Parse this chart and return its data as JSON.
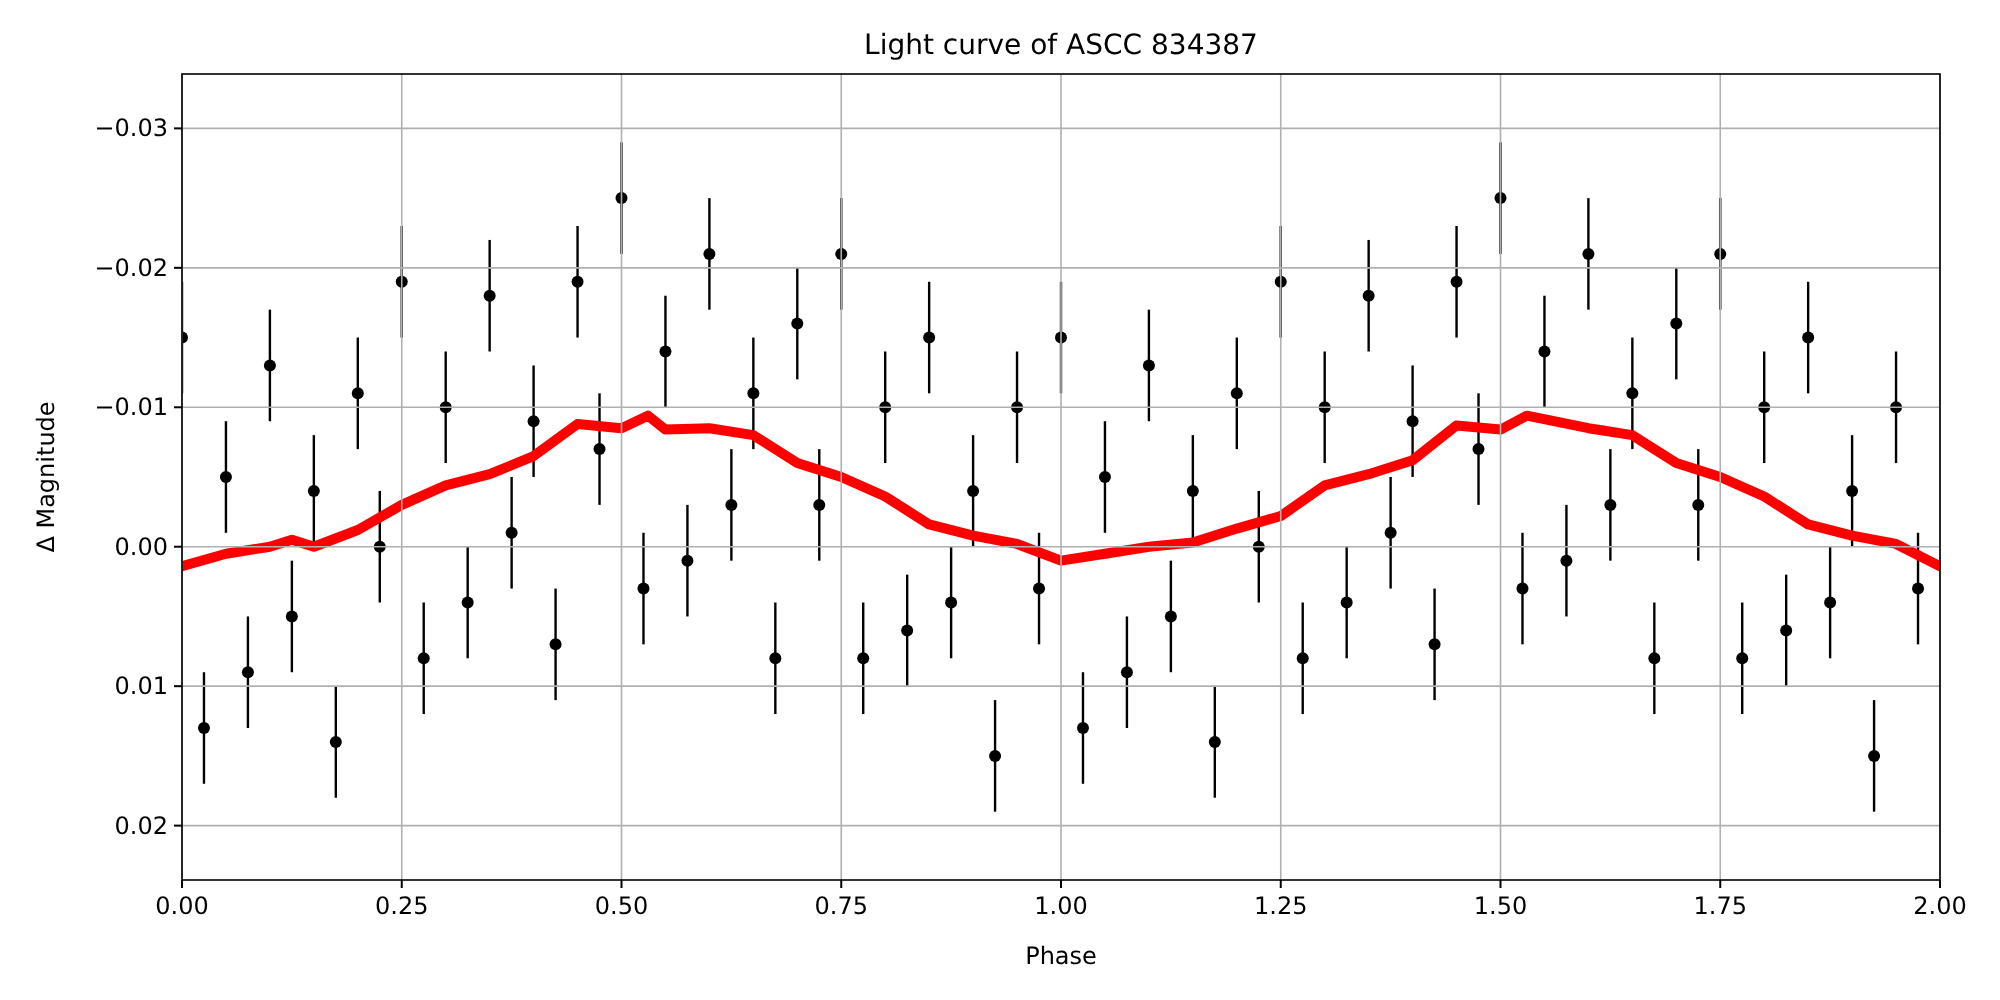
{
  "chart_data": {
    "type": "scatter",
    "title": "Light curve of ASCC 834387",
    "xlabel": "Phase",
    "ylabel": "Δ Magnitude",
    "xlim": [
      0,
      2
    ],
    "xticks": [
      {
        "value": 0,
        "label": "0.00"
      },
      {
        "value": 0.25,
        "label": "0.25"
      },
      {
        "value": 0.5,
        "label": "0.50"
      },
      {
        "value": 0.75,
        "label": "0.75"
      },
      {
        "value": 1,
        "label": "1.00"
      },
      {
        "value": 1.25,
        "label": "1.25"
      },
      {
        "value": 1.5,
        "label": "1.50"
      },
      {
        "value": 1.75,
        "label": "1.75"
      },
      {
        "value": 2,
        "label": "2.00"
      }
    ],
    "ylim": [
      0.0239,
      -0.0339
    ],
    "yticks": [
      {
        "value": -0.03,
        "label": "−0.03"
      },
      {
        "value": -0.02,
        "label": "−0.02"
      },
      {
        "value": -0.01,
        "label": "−0.01"
      },
      {
        "value": 0,
        "label": "0.00"
      },
      {
        "value": 0.01,
        "label": "0.01"
      },
      {
        "value": 0.02,
        "label": "0.02"
      }
    ],
    "grid": true,
    "series": [
      {
        "marker": "circle",
        "color": "#000000",
        "x": [
          0,
          0.025,
          0.05,
          0.075,
          0.1,
          0.125,
          0.15,
          0.175,
          0.2,
          0.225,
          0.25,
          0.275,
          0.3,
          0.325,
          0.35,
          0.375,
          0.4,
          0.425,
          0.45,
          0.475,
          0.5,
          0.525,
          0.55,
          0.575,
          0.6,
          0.625,
          0.65,
          0.675,
          0.7,
          0.725,
          0.75,
          0.775,
          0.8,
          0.825,
          0.85,
          0.875,
          0.9,
          0.925,
          0.95,
          0.975,
          1,
          1.025,
          1.05,
          1.075,
          1.1,
          1.125,
          1.15,
          1.175,
          1.2,
          1.225,
          1.25,
          1.275,
          1.3,
          1.325,
          1.35,
          1.375,
          1.4,
          1.425,
          1.45,
          1.475,
          1.5,
          1.525,
          1.55,
          1.575,
          1.6,
          1.625,
          1.65,
          1.675,
          1.7,
          1.725,
          1.75,
          1.775,
          1.8,
          1.825,
          1.85,
          1.875,
          1.9,
          1.925,
          1.95,
          1.975
        ],
        "values": [
          -0.015,
          0.013,
          -0.005,
          0.009,
          -0.013,
          0.005,
          -0.004,
          0.014,
          -0.011,
          0,
          -0.019,
          0.008,
          -0.01,
          0.004,
          -0.018,
          -0.001,
          -0.009,
          0.007,
          -0.019,
          -0.007,
          -0.025,
          0.003,
          -0.014,
          0.001,
          -0.021,
          -0.003,
          -0.011,
          0.008,
          -0.016,
          -0.003,
          -0.021,
          0.008,
          -0.01,
          0.006,
          -0.015,
          0.004,
          -0.004,
          0.015,
          -0.01,
          0.003,
          -0.015,
          0.013,
          -0.005,
          0.009,
          -0.013,
          0.005,
          -0.004,
          0.014,
          -0.011,
          0,
          -0.019,
          0.008,
          -0.01,
          0.004,
          -0.018,
          -0.001,
          -0.009,
          0.007,
          -0.019,
          -0.007,
          -0.025,
          0.003,
          -0.014,
          0.001,
          -0.021,
          -0.003,
          -0.011,
          0.008,
          -0.016,
          -0.003,
          -0.021,
          0.008,
          -0.01,
          0.006,
          -0.015,
          0.004,
          -0.004,
          0.015,
          -0.01,
          0.003
        ],
        "errors": [
          0.004,
          0.004,
          0.004,
          0.004,
          0.004,
          0.004,
          0.004,
          0.004,
          0.004,
          0.004,
          0.004,
          0.004,
          0.004,
          0.004,
          0.004,
          0.004,
          0.004,
          0.004,
          0.004,
          0.004,
          0.004,
          0.004,
          0.004,
          0.004,
          0.004,
          0.004,
          0.004,
          0.004,
          0.004,
          0.004,
          0.004,
          0.004,
          0.004,
          0.004,
          0.004,
          0.004,
          0.004,
          0.004,
          0.004,
          0.004,
          0.004,
          0.004,
          0.004,
          0.004,
          0.004,
          0.004,
          0.004,
          0.004,
          0.004,
          0.004,
          0.004,
          0.004,
          0.004,
          0.004,
          0.004,
          0.004,
          0.004,
          0.004,
          0.004,
          0.004,
          0.004,
          0.004,
          0.004,
          0.004,
          0.004,
          0.004,
          0.004,
          0.004,
          0.004,
          0.004,
          0.004,
          0.004,
          0.004,
          0.004,
          0.004,
          0.004,
          0.004,
          0.004,
          0.004,
          0.004
        ]
      },
      {
        "type": "line",
        "color": "#ff0000",
        "x": [
          0,
          0.05,
          0.1,
          0.125,
          0.15,
          0.2,
          0.25,
          0.3,
          0.35,
          0.4,
          0.45,
          0.5,
          0.53,
          0.55,
          0.6,
          0.65,
          0.7,
          0.75,
          0.8,
          0.85,
          0.9,
          0.95,
          1,
          1.05,
          1.1,
          1.15,
          1.2,
          1.25,
          1.3,
          1.35,
          1.4,
          1.45,
          1.5,
          1.53,
          1.6,
          1.65,
          1.7,
          1.75,
          1.8,
          1.85,
          1.9,
          1.95,
          2
        ],
        "values": [
          0.0014,
          0.0005,
          0,
          -0.0005,
          0,
          -0.0012,
          -0.003,
          -0.0044,
          -0.0052,
          -0.0065,
          -0.0088,
          -0.0085,
          -0.0094,
          -0.0084,
          -0.0085,
          -0.008,
          -0.006,
          -0.005,
          -0.0036,
          -0.0016,
          -0.0008,
          -0.0002,
          0.001,
          0.0005,
          0,
          -0.0003,
          -0.0013,
          -0.0022,
          -0.0044,
          -0.0052,
          -0.0062,
          -0.0087,
          -0.0084,
          -0.0094,
          -0.0085,
          -0.008,
          -0.006,
          -0.005,
          -0.0036,
          -0.0016,
          -0.0008,
          -0.0002,
          0.0014
        ]
      }
    ]
  }
}
